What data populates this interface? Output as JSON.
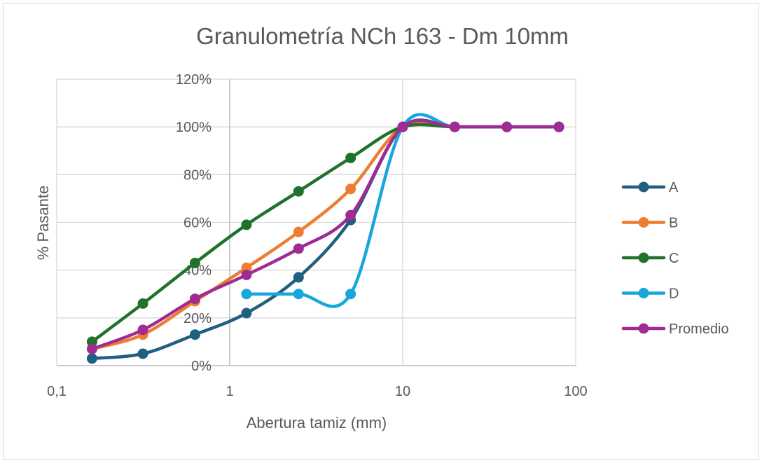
{
  "chart_data": {
    "type": "line",
    "title": "Granulometría NCh 163 - Dm 10mm",
    "xlabel": "Abertura tamiz (mm)",
    "ylabel": "% Pasante",
    "x_scale": "log",
    "xlim": [
      0.1,
      100
    ],
    "ylim": [
      0,
      1.2
    ],
    "x_ticks": [
      0.1,
      1,
      10,
      100
    ],
    "x_tick_labels": [
      "0,1",
      "1",
      "10",
      "100"
    ],
    "y_ticks": [
      0,
      0.2,
      0.4,
      0.6,
      0.8,
      1.0,
      1.2
    ],
    "y_tick_labels": [
      "0%",
      "20%",
      "40%",
      "60%",
      "80%",
      "100%",
      "120%"
    ],
    "grid": true,
    "smooth": true,
    "legend_position": "right",
    "series": [
      {
        "name": "A",
        "color": "#1f5f7f",
        "x": [
          0.16,
          0.315,
          0.63,
          1.25,
          2.5,
          5,
          10,
          20,
          40,
          80
        ],
        "y": [
          0.03,
          0.05,
          0.13,
          0.22,
          0.37,
          0.61,
          1.0,
          1.0,
          1.0,
          1.0
        ]
      },
      {
        "name": "B",
        "color": "#ed7d31",
        "x": [
          0.16,
          0.315,
          0.63,
          1.25,
          2.5,
          5,
          10,
          20,
          40,
          80
        ],
        "y": [
          0.07,
          0.13,
          0.27,
          0.41,
          0.56,
          0.74,
          1.0,
          1.0,
          1.0,
          1.0
        ]
      },
      {
        "name": "C",
        "color": "#1e7229",
        "x": [
          0.16,
          0.315,
          0.63,
          1.25,
          2.5,
          5,
          10,
          20,
          40,
          80
        ],
        "y": [
          0.1,
          0.26,
          0.43,
          0.59,
          0.73,
          0.87,
          1.0,
          1.0,
          1.0,
          1.0
        ]
      },
      {
        "name": "D",
        "color": "#17a7db",
        "x": [
          1.25,
          2.5,
          5,
          10,
          20,
          40,
          80
        ],
        "y": [
          0.3,
          0.3,
          0.3,
          1.0,
          1.0,
          1.0,
          1.0
        ]
      },
      {
        "name": "Promedio",
        "color": "#a02b93",
        "x": [
          0.16,
          0.315,
          0.63,
          1.25,
          2.5,
          5,
          10,
          20,
          40,
          80
        ],
        "y": [
          0.07,
          0.15,
          0.28,
          0.38,
          0.49,
          0.63,
          1.0,
          1.0,
          1.0,
          1.0
        ]
      }
    ]
  }
}
